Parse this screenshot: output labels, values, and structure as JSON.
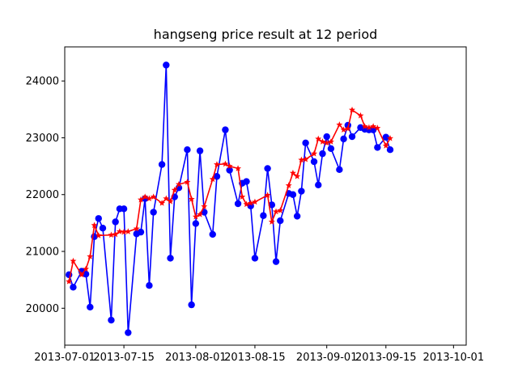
{
  "chart_data": {
    "type": "line",
    "title": "hangseng price result at 12 period",
    "xlabel": "",
    "ylabel": "",
    "x_axis": "date",
    "xlim": [
      "2013-07-01",
      "2013-10-04"
    ],
    "ylim": [
      19350,
      24600
    ],
    "xticks": [
      "2013-07-01",
      "2013-07-15",
      "2013-08-01",
      "2013-08-15",
      "2013-09-01",
      "2013-09-15",
      "2013-10-01"
    ],
    "yticks": [
      20000,
      21000,
      22000,
      23000,
      24000
    ],
    "grid": false,
    "legend": "none",
    "series": [
      {
        "color": "#0000ff",
        "marker": "circle",
        "points": [
          [
            "2013-07-02",
            20590
          ],
          [
            "2013-07-03",
            20370
          ],
          [
            "2013-07-05",
            20650
          ],
          [
            "2013-07-06",
            20600
          ],
          [
            "2013-07-07",
            20020
          ],
          [
            "2013-07-08",
            21260
          ],
          [
            "2013-07-09",
            21580
          ],
          [
            "2013-07-10",
            21410
          ],
          [
            "2013-07-12",
            19790
          ],
          [
            "2013-07-13",
            21520
          ],
          [
            "2013-07-14",
            21750
          ],
          [
            "2013-07-15",
            21750
          ],
          [
            "2013-07-16",
            19570
          ],
          [
            "2013-07-18",
            21310
          ],
          [
            "2013-07-19",
            21340
          ],
          [
            "2013-07-20",
            21930
          ],
          [
            "2013-07-21",
            20400
          ],
          [
            "2013-07-22",
            21690
          ],
          [
            "2013-07-24",
            22530
          ],
          [
            "2013-07-25",
            24280
          ],
          [
            "2013-07-26",
            20880
          ],
          [
            "2013-07-27",
            21960
          ],
          [
            "2013-07-28",
            22120
          ],
          [
            "2013-07-30",
            22790
          ],
          [
            "2013-07-31",
            20060
          ],
          [
            "2013-08-01",
            21490
          ],
          [
            "2013-08-02",
            22770
          ],
          [
            "2013-08-03",
            21690
          ],
          [
            "2013-08-05",
            21300
          ],
          [
            "2013-08-06",
            22320
          ],
          [
            "2013-08-08",
            23140
          ],
          [
            "2013-08-09",
            22430
          ],
          [
            "2013-08-11",
            21840
          ],
          [
            "2013-08-12",
            22200
          ],
          [
            "2013-08-13",
            22230
          ],
          [
            "2013-08-14",
            21800
          ],
          [
            "2013-08-15",
            20880
          ],
          [
            "2013-08-17",
            21630
          ],
          [
            "2013-08-18",
            22460
          ],
          [
            "2013-08-19",
            21820
          ],
          [
            "2013-08-20",
            20820
          ],
          [
            "2013-08-21",
            21540
          ],
          [
            "2013-08-23",
            22020
          ],
          [
            "2013-08-24",
            22000
          ],
          [
            "2013-08-25",
            21620
          ],
          [
            "2013-08-26",
            22060
          ],
          [
            "2013-08-27",
            22910
          ],
          [
            "2013-08-29",
            22580
          ],
          [
            "2013-08-30",
            22170
          ],
          [
            "2013-08-31",
            22720
          ],
          [
            "2013-09-01",
            23020
          ],
          [
            "2013-09-02",
            22810
          ],
          [
            "2013-09-04",
            22440
          ],
          [
            "2013-09-05",
            22980
          ],
          [
            "2013-09-06",
            23220
          ],
          [
            "2013-09-07",
            23020
          ],
          [
            "2013-09-09",
            23180
          ],
          [
            "2013-09-10",
            23150
          ],
          [
            "2013-09-11",
            23140
          ],
          [
            "2013-09-12",
            23140
          ],
          [
            "2013-09-13",
            22830
          ],
          [
            "2013-09-15",
            23010
          ],
          [
            "2013-09-16",
            22790
          ]
        ]
      },
      {
        "color": "#ff0000",
        "marker": "star",
        "points": [
          [
            "2013-07-02",
            20470
          ],
          [
            "2013-07-03",
            20830
          ],
          [
            "2013-07-05",
            20590
          ],
          [
            "2013-07-06",
            20690
          ],
          [
            "2013-07-07",
            20910
          ],
          [
            "2013-07-08",
            21460
          ],
          [
            "2013-07-09",
            21280
          ],
          [
            "2013-07-12",
            21290
          ],
          [
            "2013-07-13",
            21300
          ],
          [
            "2013-07-14",
            21350
          ],
          [
            "2013-07-15",
            21340
          ],
          [
            "2013-07-16",
            21350
          ],
          [
            "2013-07-18",
            21400
          ],
          [
            "2013-07-19",
            21910
          ],
          [
            "2013-07-20",
            21960
          ],
          [
            "2013-07-21",
            21930
          ],
          [
            "2013-07-22",
            21960
          ],
          [
            "2013-07-24",
            21850
          ],
          [
            "2013-07-25",
            21930
          ],
          [
            "2013-07-26",
            21880
          ],
          [
            "2013-07-27",
            22080
          ],
          [
            "2013-07-28",
            22180
          ],
          [
            "2013-07-30",
            22220
          ],
          [
            "2013-07-31",
            21920
          ],
          [
            "2013-08-01",
            21610
          ],
          [
            "2013-08-02",
            21650
          ],
          [
            "2013-08-03",
            21790
          ],
          [
            "2013-08-05",
            22270
          ],
          [
            "2013-08-06",
            22530
          ],
          [
            "2013-08-08",
            22540
          ],
          [
            "2013-08-09",
            22500
          ],
          [
            "2013-08-11",
            22460
          ],
          [
            "2013-08-12",
            21960
          ],
          [
            "2013-08-13",
            21830
          ],
          [
            "2013-08-14",
            21850
          ],
          [
            "2013-08-15",
            21870
          ],
          [
            "2013-08-18",
            21990
          ],
          [
            "2013-08-19",
            21520
          ],
          [
            "2013-08-20",
            21700
          ],
          [
            "2013-08-21",
            21720
          ],
          [
            "2013-08-23",
            22160
          ],
          [
            "2013-08-24",
            22380
          ],
          [
            "2013-08-25",
            22320
          ],
          [
            "2013-08-26",
            22610
          ],
          [
            "2013-08-27",
            22620
          ],
          [
            "2013-08-29",
            22720
          ],
          [
            "2013-08-30",
            22980
          ],
          [
            "2013-08-31",
            22930
          ],
          [
            "2013-09-01",
            22910
          ],
          [
            "2013-09-02",
            22930
          ],
          [
            "2013-09-04",
            23230
          ],
          [
            "2013-09-05",
            23140
          ],
          [
            "2013-09-06",
            23160
          ],
          [
            "2013-09-07",
            23490
          ],
          [
            "2013-09-09",
            23390
          ],
          [
            "2013-09-10",
            23200
          ],
          [
            "2013-09-11",
            23180
          ],
          [
            "2013-09-12",
            23200
          ],
          [
            "2013-09-13",
            23170
          ],
          [
            "2013-09-15",
            22860
          ],
          [
            "2013-09-16",
            22990
          ]
        ]
      }
    ]
  }
}
